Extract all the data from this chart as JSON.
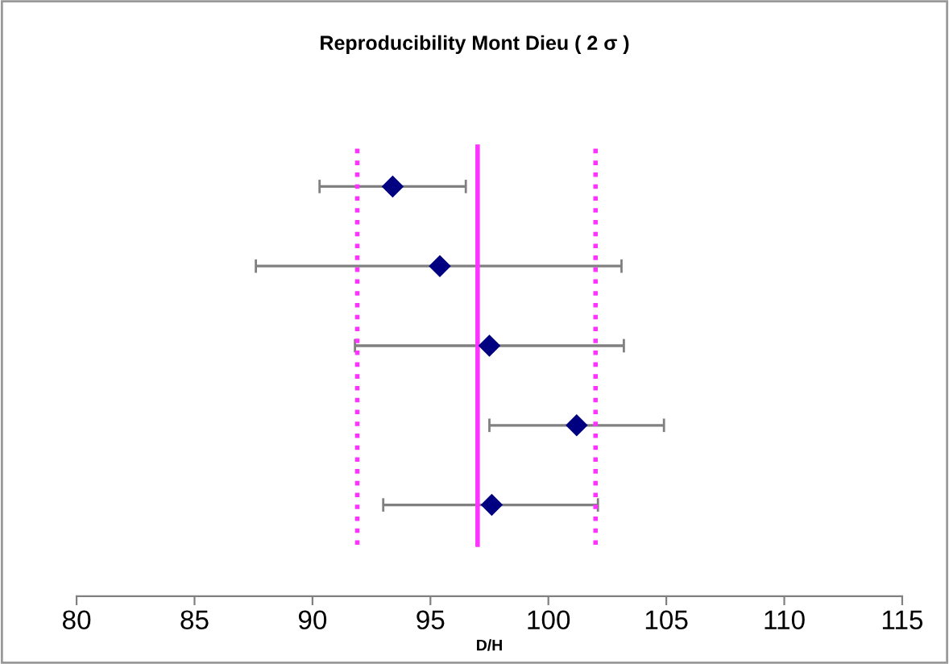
{
  "chart_data": {
    "type": "scatter",
    "orientation": "horizontal",
    "title": "Reproducibility Mont Dieu ( 2 σ )",
    "xlabel": "D/H",
    "categories": [
      null,
      null,
      null,
      null,
      null
    ],
    "series": [
      {
        "color": "#000080",
        "values": [
          93.4,
          95.4,
          97.5,
          101.2,
          97.6
        ],
        "errors": [
          [
            90.3,
            96.5
          ],
          [
            87.6,
            103.1
          ],
          [
            91.8,
            103.2
          ],
          [
            97.5,
            104.9
          ],
          [
            93.0,
            102.1
          ]
        ]
      }
    ],
    "marker": "diamond",
    "xlim": [
      80,
      115
    ],
    "xticks": [
      80,
      85,
      90,
      95,
      100,
      105,
      110,
      115
    ],
    "grid": false,
    "legend": false,
    "tick_labels": "x",
    "ref_lines": [
      {
        "axis": "x",
        "value": 91.9,
        "color": "#ff33ff",
        "line_style": "dotted"
      },
      {
        "axis": "x",
        "value": 97.0,
        "color": "#ff33ff",
        "line_style": "solid"
      },
      {
        "axis": "x",
        "value": 102.0,
        "color": "#ff33ff",
        "line_style": "dotted"
      }
    ]
  }
}
